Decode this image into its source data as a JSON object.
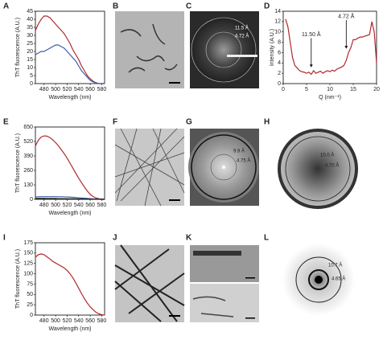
{
  "panel_labels": [
    "A",
    "B",
    "C",
    "D",
    "E",
    "F",
    "G",
    "H",
    "I",
    "J",
    "K",
    "L"
  ],
  "annotations": {
    "C": [
      "11.5 Å",
      "4.72 Å"
    ],
    "G": [
      "9.9 Å",
      "4.75 Å"
    ],
    "H": [
      "10.0 Å",
      "4.70 Å"
    ],
    "L": [
      "10.7 Å",
      "4.65 Å"
    ]
  },
  "chart_data": [
    {
      "type": "line",
      "x_label": "Wavelength (nm)",
      "y_label": "ThT fluorescence (A.U.)",
      "x": [
        465,
        470,
        475,
        480,
        485,
        490,
        495,
        500,
        505,
        510,
        515,
        520,
        525,
        530,
        535,
        540,
        545,
        550,
        555,
        560,
        565,
        570,
        575,
        580,
        585
      ],
      "xlim": [
        465,
        585
      ],
      "xticks": [
        480,
        500,
        520,
        540,
        560,
        580
      ],
      "ylim": [
        0,
        45
      ],
      "yticks": [
        0,
        5,
        10,
        15,
        20,
        25,
        30,
        35,
        40,
        45
      ],
      "series": [
        {
          "color": "#b0282c",
          "values": [
            33,
            37,
            40,
            42,
            42,
            41,
            39,
            37,
            35,
            33,
            31,
            28,
            25,
            21,
            18,
            15,
            11,
            8,
            5,
            3,
            1.5,
            0.5,
            0,
            0,
            0
          ]
        },
        {
          "color": "#3a5da8",
          "values": [
            18,
            19,
            20,
            20,
            21,
            22,
            23,
            24,
            24,
            23,
            22,
            20,
            18,
            16,
            14,
            11,
            8,
            6,
            4,
            2,
            1,
            0.5,
            0,
            0,
            0
          ]
        }
      ]
    },
    {
      "type": "line",
      "x_label": "Q (nm⁻¹)",
      "y_label": "Intensity (A.U.)",
      "annotations": [
        "11.50 Å",
        "4.72 Å"
      ],
      "x": [
        0.5,
        1,
        1.5,
        2,
        2.5,
        3,
        3.5,
        4,
        4.5,
        5,
        5.5,
        6,
        6.5,
        7,
        7.5,
        8,
        8.5,
        9,
        9.5,
        10,
        10.5,
        11,
        11.5,
        12,
        12.5,
        13,
        13.5,
        14,
        14.5,
        15,
        15.5,
        16,
        16.5,
        17,
        17.5,
        18,
        18.5,
        19,
        19.5,
        20
      ],
      "xlim": [
        0,
        20
      ],
      "xticks": [
        0,
        5,
        10,
        15,
        20
      ],
      "ylim": [
        0,
        14
      ],
      "yticks": [
        0,
        2,
        4,
        6,
        8,
        10,
        12,
        14
      ],
      "series": [
        {
          "color": "#b0282c",
          "values": [
            12.5,
            11,
            8,
            5,
            3.5,
            3,
            2.5,
            2.3,
            2.2,
            2,
            2.2,
            1.8,
            2.5,
            2,
            2.2,
            2.4,
            2,
            2.3,
            2.5,
            2.3,
            2.6,
            2.4,
            2.8,
            3,
            3.2,
            3.5,
            4.5,
            6,
            7,
            8.5,
            8.5,
            8.8,
            9,
            9,
            9.2,
            9.3,
            9.5,
            12,
            10,
            4
          ]
        }
      ]
    },
    {
      "type": "line",
      "x_label": "Wavelength (nm)",
      "y_label": "ThT fluorescence (A.U.)",
      "x": [
        465,
        470,
        475,
        480,
        485,
        490,
        495,
        500,
        505,
        510,
        515,
        520,
        525,
        530,
        535,
        540,
        545,
        550,
        555,
        560,
        565,
        570,
        575,
        580,
        585
      ],
      "xlim": [
        465,
        585
      ],
      "xticks": [
        480,
        500,
        520,
        540,
        560,
        580
      ],
      "ylim": [
        0,
        650
      ],
      "yticks": [
        0,
        130,
        260,
        390,
        520,
        650
      ],
      "series": [
        {
          "color": "#b0282c",
          "values": [
            480,
            530,
            560,
            570,
            568,
            555,
            535,
            510,
            480,
            445,
            410,
            370,
            325,
            280,
            235,
            190,
            150,
            110,
            75,
            45,
            25,
            12,
            5,
            2,
            0
          ]
        },
        {
          "color": "#3a5da8",
          "values": [
            22,
            23,
            24,
            24,
            24,
            24,
            24,
            24,
            23,
            23,
            22,
            21,
            20,
            18,
            16,
            14,
            12,
            10,
            8,
            6,
            4,
            3,
            2,
            1,
            0
          ]
        },
        {
          "color": "#111111",
          "values": [
            8,
            8,
            8,
            8,
            7,
            7,
            7,
            7,
            6,
            6,
            6,
            5,
            5,
            5,
            4,
            4,
            3,
            3,
            2,
            2,
            1,
            1,
            1,
            0,
            0
          ]
        }
      ]
    },
    {
      "type": "line",
      "x_label": "Wavelength (nm)",
      "y_label": "ThT fluorescence (A.U.)",
      "x": [
        465,
        470,
        475,
        480,
        485,
        490,
        495,
        500,
        505,
        510,
        515,
        520,
        525,
        530,
        535,
        540,
        545,
        550,
        555,
        560,
        565,
        570,
        575,
        580,
        585
      ],
      "xlim": [
        465,
        585
      ],
      "xticks": [
        480,
        500,
        520,
        540,
        560,
        580
      ],
      "ylim": [
        0,
        175
      ],
      "yticks": [
        0,
        25,
        50,
        75,
        100,
        125,
        150,
        175
      ],
      "series": [
        {
          "color": "#b0282c",
          "values": [
            140,
            146,
            148,
            146,
            141,
            136,
            130,
            126,
            122,
            118,
            114,
            108,
            100,
            90,
            78,
            65,
            52,
            40,
            29,
            20,
            13,
            7,
            3,
            1,
            0
          ]
        }
      ]
    }
  ]
}
